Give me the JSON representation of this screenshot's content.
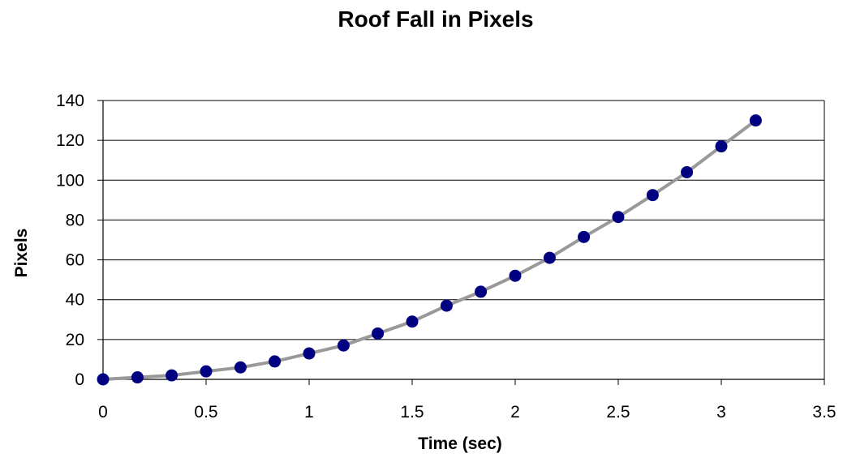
{
  "chart_data": {
    "type": "scatter",
    "title": "Roof Fall in Pixels",
    "xlabel": "Time (sec)",
    "ylabel": "Pixels",
    "xlim": [
      0,
      3.5
    ],
    "ylim": [
      0,
      140
    ],
    "x_ticks": [
      "0",
      "0.5",
      "1",
      "1.5",
      "2",
      "2.5",
      "3",
      "3.5"
    ],
    "y_ticks": [
      "0",
      "20",
      "40",
      "60",
      "80",
      "100",
      "120",
      "140"
    ],
    "grid": "horizontal",
    "legend": "none",
    "line_color": "#999999",
    "marker_color": "#000080",
    "series": [
      {
        "x": [
          0,
          0.167,
          0.333,
          0.5,
          0.667,
          0.833,
          1.0,
          1.167,
          1.333,
          1.5,
          1.667,
          1.833,
          2.0,
          2.167,
          2.333,
          2.5,
          2.667,
          2.833,
          3.0,
          3.167
        ],
        "y": [
          0,
          1,
          2,
          4,
          6,
          9,
          13,
          17,
          23,
          29,
          37,
          44,
          52,
          61,
          71.5,
          81.5,
          92.5,
          104,
          117,
          130
        ]
      }
    ]
  }
}
